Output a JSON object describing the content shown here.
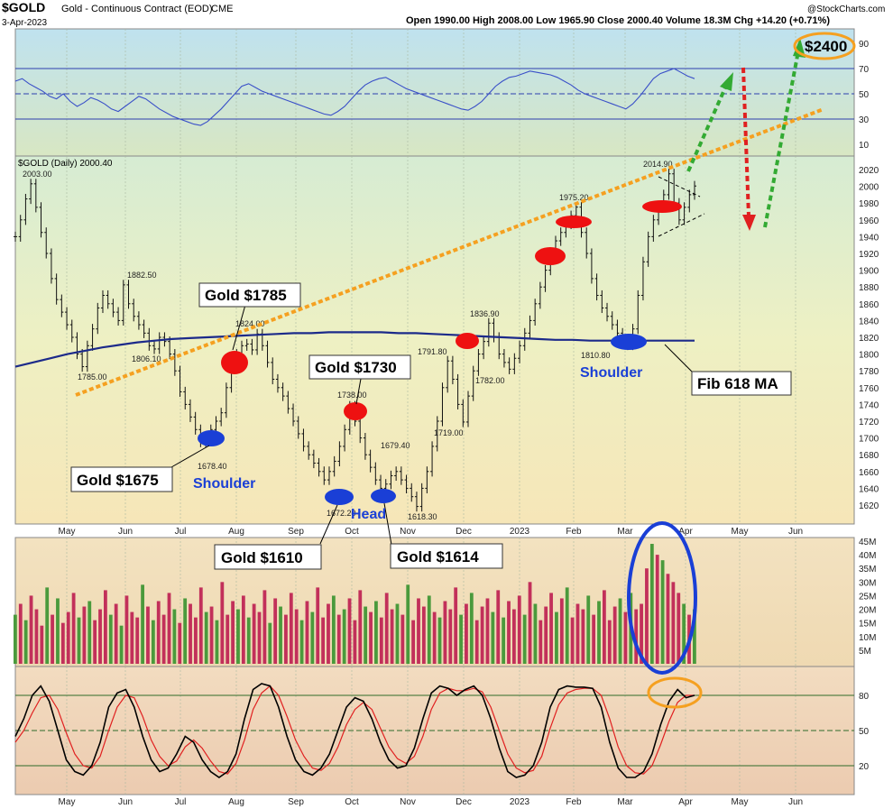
{
  "header": {
    "symbol": "$GOLD",
    "description": "Gold - Continuous Contract (EOD)",
    "exchange": "CME",
    "date": "3-Apr-2023",
    "ohlc_text": "Open 1990.00  High 2008.00  Low 1965.90  Close 2000.40  Volume 18.3M  Chg +14.20 (+0.71%)",
    "watermark": "@StockCharts.com",
    "legend": "$GOLD (Daily) 2000.40"
  },
  "x_axis": {
    "months": [
      "May",
      "Jun",
      "Jul",
      "Aug",
      "Sep",
      "Oct",
      "Nov",
      "Dec",
      "2023",
      "Feb",
      "Mar",
      "Apr",
      "May",
      "Jun"
    ]
  },
  "chart_data": [
    {
      "type": "line",
      "panel": "RSI",
      "y_ticks": [
        90,
        70,
        50,
        30,
        10
      ],
      "ylim": [
        0,
        100
      ],
      "levels": [
        30,
        50,
        70
      ],
      "series": [
        {
          "values": [
            60,
            62,
            58,
            55,
            52,
            48,
            46,
            50,
            44,
            40,
            43,
            47,
            45,
            42,
            38,
            36,
            40,
            44,
            48,
            46,
            42,
            38,
            35,
            32,
            30,
            28,
            26,
            25,
            28,
            33,
            38,
            44,
            50,
            56,
            58,
            55,
            52,
            50,
            48,
            46,
            44,
            42,
            40,
            38,
            36,
            34,
            33,
            36,
            40,
            46,
            52,
            57,
            60,
            62,
            63,
            60,
            57,
            54,
            52,
            50,
            48,
            46,
            44,
            42,
            40,
            38,
            37,
            40,
            44,
            50,
            56,
            60,
            63,
            64,
            66,
            68,
            67,
            66,
            65,
            63,
            60,
            57,
            53,
            50,
            48,
            46,
            44,
            42,
            40,
            38,
            42,
            48,
            55,
            62,
            66,
            68,
            70,
            67,
            64,
            62
          ]
        }
      ]
    },
    {
      "type": "line",
      "panel": "price",
      "y_ticks": [
        2020,
        2000,
        1980,
        1960,
        1940,
        1920,
        1900,
        1880,
        1860,
        1840,
        1820,
        1800,
        1780,
        1760,
        1740,
        1720,
        1700,
        1680,
        1660,
        1640,
        1620
      ],
      "ylim": [
        1600,
        2032
      ],
      "series": [
        {
          "values": [
            1940,
            1960,
            1985,
            2003,
            1975,
            1945,
            1920,
            1890,
            1865,
            1850,
            1835,
            1820,
            1800,
            1785,
            1810,
            1830,
            1855,
            1870,
            1860,
            1850,
            1840,
            1882.5,
            1860,
            1845,
            1835,
            1825,
            1810,
            1806.1,
            1820,
            1815,
            1800,
            1780,
            1755,
            1740,
            1725,
            1710,
            1695,
            1700,
            1710,
            1720,
            1730,
            1760,
            1785,
            1800,
            1810,
            1812,
            1805,
            1824,
            1810,
            1790,
            1770,
            1760,
            1750,
            1735,
            1720,
            1705,
            1690,
            1680,
            1670,
            1660,
            1650,
            1660,
            1672.2,
            1690,
            1710,
            1738,
            1720,
            1700,
            1680,
            1665,
            1650,
            1640,
            1645,
            1655,
            1660,
            1650,
            1640,
            1630,
            1618.3,
            1640,
            1660,
            1690,
            1720,
            1760,
            1791.8,
            1770,
            1740,
            1719,
            1750,
            1780,
            1800,
            1815,
            1836.9,
            1820,
            1800,
            1790,
            1782,
            1795,
            1810,
            1825,
            1840,
            1860,
            1880,
            1900,
            1920,
            1935,
            1945,
            1955,
            1965,
            1975.2,
            1945,
            1920,
            1890,
            1870,
            1855,
            1845,
            1835,
            1825,
            1815,
            1810.8,
            1830,
            1870,
            1910,
            1940,
            1960,
            1975,
            1990,
            2014.9,
            1980,
            1960,
            1975,
            1990,
            2000.4
          ]
        },
        {
          "name": "Fib 618 MA",
          "values": [
            1785,
            1790,
            1795,
            1800,
            1804,
            1808,
            1811,
            1814,
            1816,
            1818,
            1819,
            1820,
            1821,
            1822,
            1823,
            1824,
            1825,
            1825,
            1826,
            1826,
            1826,
            1826,
            1825,
            1825,
            1824,
            1823,
            1822,
            1821,
            1820,
            1819,
            1818,
            1817,
            1817,
            1816,
            1816,
            1816,
            1816,
            1816,
            1816,
            1816
          ]
        }
      ],
      "annotations": [
        "2003.00",
        "1882.50",
        "1785.00",
        "1806.10",
        "1824.00",
        "1678.40",
        "1672.20",
        "1738.00",
        "1679.40",
        "1618.30",
        "1791.80",
        "1719.00",
        "1836.90",
        "1782.00",
        "1975.20",
        "1810.80",
        "2014.90"
      ]
    },
    {
      "type": "bar",
      "panel": "volume",
      "y_ticks": [
        "45M",
        "40M",
        "35M",
        "30M",
        "25M",
        "20M",
        "15M",
        "10M",
        "5M"
      ],
      "ylim": [
        0,
        45
      ],
      "values": [
        18,
        22,
        16,
        25,
        20,
        14,
        28,
        18,
        24,
        15,
        19,
        26,
        17,
        21,
        23,
        16,
        20,
        27,
        18,
        22,
        14,
        25,
        19,
        17,
        29,
        21,
        16,
        23,
        18,
        26,
        20,
        15,
        24,
        22,
        17,
        28,
        19,
        21,
        16,
        30,
        18,
        23,
        20,
        25,
        17,
        22,
        19,
        27,
        15,
        24,
        21,
        18,
        26,
        20,
        16,
        23,
        19,
        28,
        17,
        22,
        25,
        18,
        20,
        24,
        16,
        27,
        21,
        19,
        23,
        17,
        26,
        20,
        22,
        18,
        29,
        16,
        24,
        21,
        25,
        19,
        17,
        23,
        20,
        28,
        18,
        22,
        26,
        16,
        21,
        24,
        19,
        27,
        17,
        23,
        20,
        25,
        18,
        30,
        22,
        16,
        21,
        26,
        19,
        24,
        28,
        17,
        22,
        20,
        25,
        18,
        23,
        27,
        16,
        21,
        24,
        19,
        26,
        20,
        22,
        35,
        44,
        40,
        38,
        33,
        30,
        26,
        22,
        18,
        20
      ]
    },
    {
      "type": "line",
      "panel": "stochastic",
      "y_ticks": [
        80,
        50,
        20
      ],
      "ylim": [
        0,
        100
      ],
      "levels": [
        20,
        50,
        80
      ],
      "series": [
        {
          "values": [
            45,
            60,
            80,
            88,
            75,
            50,
            25,
            15,
            12,
            20,
            40,
            70,
            82,
            85,
            70,
            45,
            25,
            15,
            18,
            30,
            45,
            40,
            25,
            15,
            10,
            15,
            30,
            60,
            85,
            90,
            88,
            70,
            45,
            25,
            15,
            12,
            18,
            30,
            50,
            70,
            78,
            75,
            60,
            40,
            25,
            18,
            20,
            35,
            60,
            82,
            88,
            86,
            80,
            85,
            88,
            80,
            60,
            35,
            15,
            10,
            12,
            20,
            40,
            70,
            85,
            88,
            87,
            87,
            86,
            70,
            40,
            18,
            10,
            10,
            15,
            30,
            55,
            75,
            85,
            78,
            80
          ]
        },
        {
          "values": [
            40,
            50,
            65,
            78,
            80,
            68,
            48,
            30,
            20,
            18,
            28,
            50,
            70,
            80,
            78,
            62,
            42,
            28,
            20,
            24,
            36,
            42,
            35,
            24,
            15,
            13,
            22,
            42,
            68,
            82,
            88,
            80,
            62,
            42,
            28,
            18,
            16,
            22,
            36,
            55,
            68,
            74,
            68,
            52,
            36,
            26,
            22,
            28,
            45,
            68,
            82,
            86,
            84,
            84,
            86,
            83,
            70,
            50,
            30,
            18,
            14,
            16,
            28,
            52,
            72,
            82,
            85,
            86,
            86,
            80,
            60,
            36,
            20,
            14,
            13,
            20,
            38,
            58,
            74,
            80,
            80
          ]
        }
      ]
    }
  ],
  "callouts": {
    "gold_1785": "Gold $1785",
    "gold_1730": "Gold $1730",
    "gold_1675": "Gold $1675",
    "gold_1610": "Gold $1610",
    "gold_1614": "Gold $1614",
    "fib": "Fib 618 MA",
    "target": "$2400",
    "shoulder_left": "Shoulder",
    "head": "Head",
    "shoulder_right": "Shoulder"
  },
  "colors": {
    "up_volume": "#4a9a3c",
    "down_volume": "#c2305a",
    "rsi_line": "#3a50c8",
    "ma_line": "#1c2a8a",
    "trendline": "#f5a020",
    "signal_line": "#e02020",
    "target_oval": "#f5a020",
    "marker_red": "#ee1111",
    "marker_blue": "#1a3fd6"
  }
}
